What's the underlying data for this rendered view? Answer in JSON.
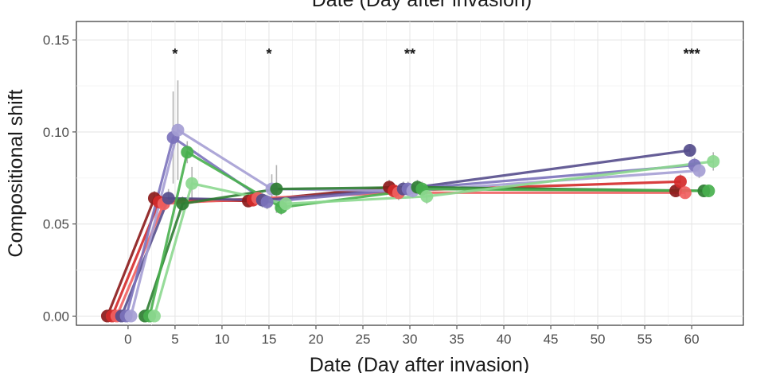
{
  "chart_data": {
    "type": "line",
    "top_caption": "Date (Day after invasion)",
    "xlabel": "Date (Day after invasion)",
    "ylabel": "Compositional shift",
    "xlim": [
      -5.5,
      65.5
    ],
    "ylim": [
      -0.005,
      0.16
    ],
    "x_ticks": [
      "0",
      "5",
      "10",
      "15",
      "20",
      "25",
      "30",
      "35",
      "40",
      "45",
      "50",
      "55",
      "60"
    ],
    "x_tick_values": [
      0,
      5,
      10,
      15,
      20,
      25,
      30,
      35,
      40,
      45,
      50,
      55,
      60
    ],
    "y_ticks": [
      "0.00",
      "0.05",
      "0.10",
      "0.15"
    ],
    "y_tick_values": [
      0,
      0.05,
      0.1,
      0.15
    ],
    "grid": true,
    "significance": [
      {
        "x": 5,
        "label": "*"
      },
      {
        "x": 15,
        "label": "*"
      },
      {
        "x": 30,
        "label": "**"
      },
      {
        "x": 60,
        "label": "***"
      }
    ],
    "series": [
      {
        "color": "#8b1a1a",
        "points": [
          [
            -2.2,
            0.0
          ],
          [
            2.8,
            0.064
          ],
          [
            12.8,
            0.0625
          ],
          [
            27.8,
            0.07
          ],
          [
            58.3,
            0.068
          ]
        ],
        "errors": [
          [
            0,
            0
          ],
          [
            0.004,
            0.004
          ],
          [
            0.003,
            0.003
          ],
          [
            0.004,
            0.004
          ],
          [
            0.003,
            0.003
          ]
        ]
      },
      {
        "color": "#d42a2a",
        "points": [
          [
            -1.7,
            0.0
          ],
          [
            3.3,
            0.062
          ],
          [
            13.3,
            0.063
          ],
          [
            28.3,
            0.068
          ],
          [
            58.8,
            0.073
          ]
        ],
        "errors": [
          [
            0,
            0
          ],
          [
            0.004,
            0.004
          ],
          [
            0.003,
            0.003
          ],
          [
            0.004,
            0.004
          ],
          [
            0.004,
            0.004
          ]
        ]
      },
      {
        "color": "#f06060",
        "points": [
          [
            -1.2,
            0.0
          ],
          [
            3.8,
            0.061
          ],
          [
            13.8,
            0.064
          ],
          [
            28.8,
            0.067
          ],
          [
            59.3,
            0.067
          ]
        ],
        "errors": [
          [
            0,
            0
          ],
          [
            0.004,
            0.004
          ],
          [
            0.003,
            0.003
          ],
          [
            0.004,
            0.004
          ],
          [
            0.003,
            0.003
          ]
        ]
      },
      {
        "color": "#554d8c",
        "points": [
          [
            -0.7,
            0.0
          ],
          [
            4.3,
            0.064
          ],
          [
            14.3,
            0.063
          ],
          [
            29.3,
            0.069
          ],
          [
            59.8,
            0.09
          ]
        ],
        "errors": [
          [
            0,
            0
          ],
          [
            0.005,
            0.005
          ],
          [
            0.004,
            0.004
          ],
          [
            0.004,
            0.004
          ],
          [
            0.003,
            0.003
          ]
        ]
      },
      {
        "color": "#7b72bb",
        "points": [
          [
            -0.2,
            0.0
          ],
          [
            4.8,
            0.097
          ],
          [
            14.8,
            0.062
          ],
          [
            29.8,
            0.069
          ],
          [
            60.3,
            0.082
          ]
        ],
        "errors": [
          [
            0,
            0
          ],
          [
            0.025,
            0.025
          ],
          [
            0.004,
            0.004
          ],
          [
            0.004,
            0.004
          ],
          [
            0.004,
            0.004
          ]
        ]
      },
      {
        "color": "#a59ed4",
        "points": [
          [
            0.3,
            0.0
          ],
          [
            5.3,
            0.101
          ],
          [
            15.3,
            0.069
          ],
          [
            30.3,
            0.068
          ],
          [
            60.8,
            0.079
          ]
        ],
        "errors": [
          [
            0,
            0
          ],
          [
            0.027,
            0.027
          ],
          [
            0.008,
            0.008
          ],
          [
            0.004,
            0.004
          ],
          [
            0.004,
            0.004
          ]
        ]
      },
      {
        "color": "#2e7d32",
        "points": [
          [
            1.8,
            0.0
          ],
          [
            5.8,
            0.061
          ],
          [
            15.8,
            0.069
          ],
          [
            30.8,
            0.07
          ],
          [
            61.3,
            0.068
          ]
        ],
        "errors": [
          [
            0,
            0
          ],
          [
            0.004,
            0.004
          ],
          [
            0.013,
            0.013
          ],
          [
            0.004,
            0.004
          ],
          [
            0.003,
            0.003
          ]
        ]
      },
      {
        "color": "#48b04e",
        "points": [
          [
            2.3,
            0.0
          ],
          [
            6.3,
            0.089
          ],
          [
            16.3,
            0.059
          ],
          [
            31.3,
            0.069
          ],
          [
            61.8,
            0.068
          ]
        ],
        "errors": [
          [
            0,
            0
          ],
          [
            0.006,
            0.006
          ],
          [
            0.004,
            0.004
          ],
          [
            0.004,
            0.004
          ],
          [
            0.003,
            0.003
          ]
        ]
      },
      {
        "color": "#8cd88f",
        "points": [
          [
            2.8,
            0.0
          ],
          [
            6.8,
            0.072
          ],
          [
            16.8,
            0.061
          ],
          [
            31.8,
            0.065
          ],
          [
            62.3,
            0.084
          ]
        ],
        "errors": [
          [
            0,
            0
          ],
          [
            0.009,
            0.009
          ],
          [
            0.004,
            0.004
          ],
          [
            0.004,
            0.004
          ],
          [
            0.005,
            0.005
          ]
        ]
      }
    ]
  }
}
